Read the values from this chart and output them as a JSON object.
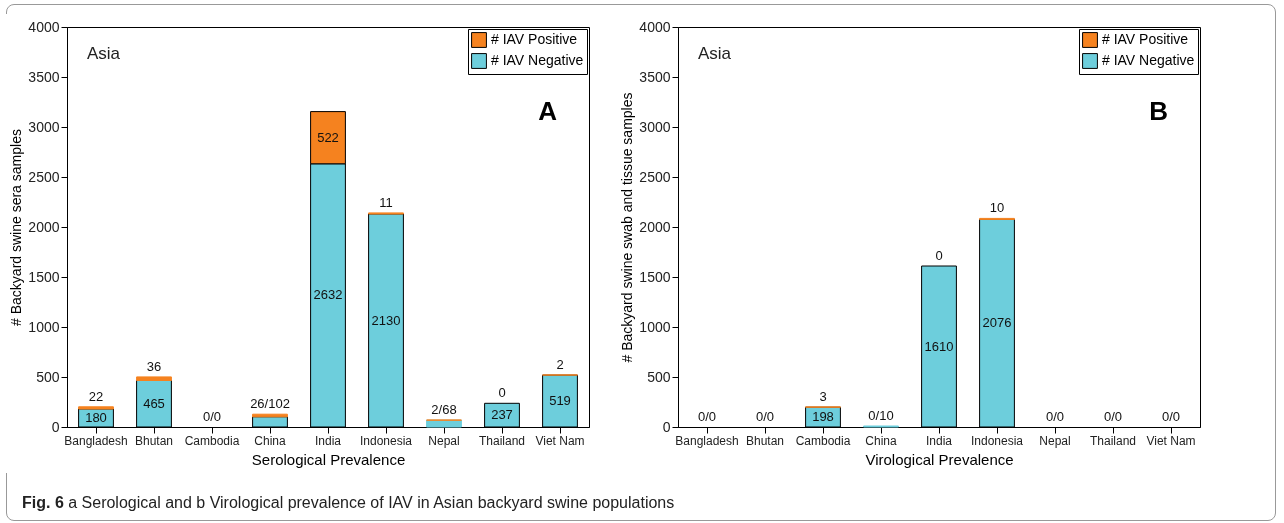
{
  "chart_data": [
    {
      "type": "bar",
      "stacked": true,
      "categories": [
        "Bangladesh",
        "Bhutan",
        "Cambodia",
        "China",
        "India",
        "Indonesia",
        "Nepal",
        "Thailand",
        "Viet Nam"
      ],
      "xlabel": "Serological Prevalence",
      "ylabel": "# Backyard swine sera samples",
      "ylim": [
        0,
        4000
      ],
      "yticks": [
        0,
        500,
        1000,
        1500,
        2000,
        2500,
        3000,
        3500,
        4000
      ],
      "legend": "top right",
      "annotations": [
        "Asia",
        "A",
        "Fig. 6 a Serological and b Virological prevalence of IAV in Asian backyard swine populations"
      ],
      "series": [
        {
          "name": "# IAV Negative",
          "color": "#6dcedc",
          "values": [
            180,
            465,
            0,
            102,
            2632,
            2130,
            68,
            237,
            519
          ],
          "value_labels": [
            "180",
            "465",
            null,
            null,
            "2632",
            "2130",
            null,
            "237",
            "519"
          ]
        },
        {
          "name": "# IAV Positive",
          "color": "#f5821f",
          "values": [
            22,
            36,
            0,
            26,
            522,
            11,
            2,
            0,
            2
          ],
          "value_labels": [
            "22",
            "36",
            "0/0",
            "26/102",
            "522",
            "11",
            "2/68",
            "0",
            "2"
          ]
        }
      ]
    },
    {
      "type": "bar",
      "stacked": true,
      "categories": [
        "Bangladesh",
        "Bhutan",
        "Cambodia",
        "China",
        "India",
        "Indonesia",
        "Nepal",
        "Thailand",
        "Viet Nam"
      ],
      "xlabel": "Virological Prevalence",
      "ylabel": "# Backyard swine swab and tissue samples",
      "ylim": [
        0,
        4000
      ],
      "yticks": [
        0,
        500,
        1000,
        1500,
        2000,
        2500,
        3000,
        3500,
        4000
      ],
      "legend": "top right",
      "annotations": [
        "Asia",
        "B"
      ],
      "series": [
        {
          "name": "# IAV Negative",
          "color": "#6dcedc",
          "values": [
            0,
            0,
            198,
            10,
            1610,
            2076,
            0,
            0,
            0
          ],
          "value_labels": [
            null,
            null,
            "198",
            null,
            "1610",
            "2076",
            null,
            null,
            null
          ]
        },
        {
          "name": "# IAV Positive",
          "color": "#f5821f",
          "values": [
            0,
            0,
            3,
            0,
            0,
            10,
            0,
            0,
            0
          ],
          "value_labels": [
            "0/0",
            "0/0",
            "3",
            "0/10",
            "0",
            "10",
            "0/0",
            "0/0",
            "0/0"
          ]
        }
      ]
    }
  ]
}
